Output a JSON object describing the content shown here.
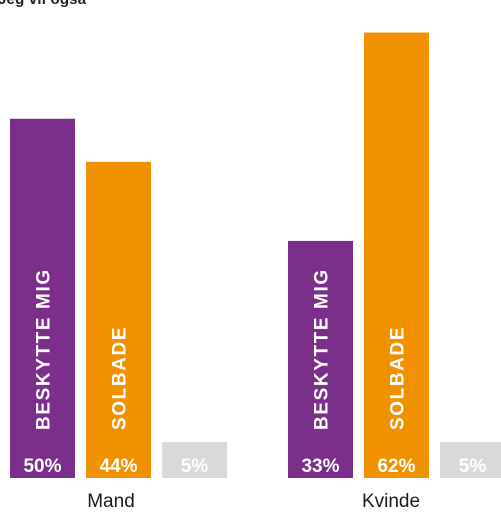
{
  "chart_data": {
    "type": "bar",
    "title": "Jeg vil også",
    "categories": [
      "Mand",
      "Kvinde"
    ],
    "series": [
      {
        "name": "BESKYTTE MIG",
        "values": [
          50,
          33
        ],
        "color": "#7b2f8a"
      },
      {
        "name": "SOLBADE",
        "values": [
          44,
          62
        ],
        "color": "#f29100"
      },
      {
        "name": "",
        "values": [
          5,
          5
        ],
        "color": "#d9d9d9"
      }
    ],
    "value_labels": [
      [
        "50%",
        "44%",
        "5%"
      ],
      [
        "33%",
        "62%",
        "5%"
      ]
    ],
    "ylim": [
      0,
      65
    ],
    "value_label_color": "#ffffff",
    "xlabel_color": "#1a1a1a",
    "grid": false,
    "legend": "none"
  }
}
